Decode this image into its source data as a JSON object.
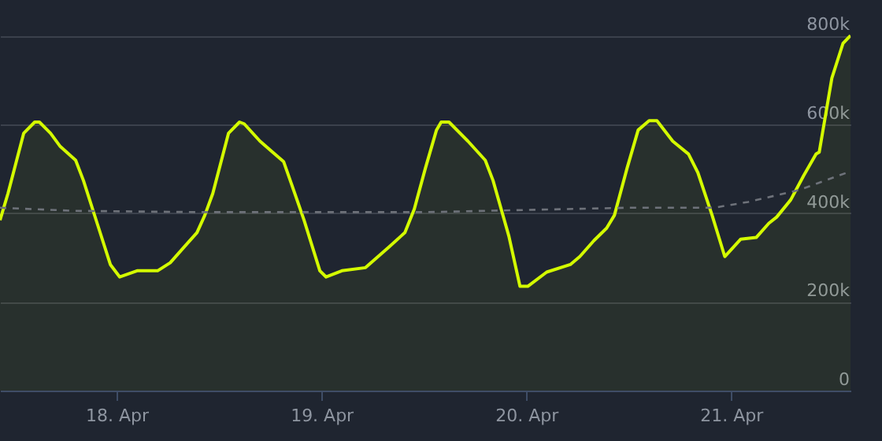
{
  "chart_data": {
    "type": "line",
    "series": [
      {
        "type": "area",
        "color": "#d4fb00",
        "x": [
          "--04-17T10:20",
          "--04-17T11:16",
          "--04-17T13:07",
          "--04-17T14:24",
          "--04-17T14:57",
          "--04-17T16:15",
          "--04-17T17:21",
          "--04-17T19:12",
          "--04-17T20:07",
          "--04-17T21:47",
          "--04-17T23:16",
          "--04-18T00:22",
          "--04-18T02:24",
          "--04-18T04:48",
          "--04-18T06:17",
          "--04-18T07:56",
          "--04-18T09:25",
          "--04-18T10:20",
          "--04-18T11:16",
          "--04-18T13:07",
          "--04-18T14:24",
          "--04-18T14:57",
          "--04-18T16:48",
          "--04-18T18:17",
          "--04-18T19:34",
          "--04-18T20:29",
          "--04-18T21:58",
          "--04-18T23:49",
          "--04-19T00:33",
          "--04-19T02:24",
          "--04-19T05:10",
          "--04-19T07:56",
          "--04-19T09:47",
          "--04-19T10:53",
          "--04-19T12:11",
          "--04-19T13:29",
          "--04-19T14:02",
          "--04-19T14:57",
          "--04-19T17:10",
          "--04-19T19:12",
          "--04-19T20:07",
          "--04-19T21:58",
          "--04-19T23:16",
          "--04-20T00:11",
          "--04-20T02:24",
          "--04-20T05:10",
          "--04-20T06:17",
          "--04-20T07:56",
          "--04-20T09:25",
          "--04-20T10:20",
          "--04-20T11:49",
          "--04-20T13:07",
          "--04-20T14:24",
          "--04-20T15:19",
          "--04-20T17:10",
          "--04-20T19:01",
          "--04-20T20:07",
          "--04-20T21:47",
          "--04-20T23:16",
          "--04-21T01:07",
          "--04-21T02:57",
          "--04-21T04:26",
          "--04-21T05:21",
          "--04-21T07:00",
          "--04-21T08:30",
          "--04-21T09:58",
          "--04-21T10:20",
          "--04-21T11:49",
          "--04-21T13:07",
          "--04-21T14:00"
        ],
        "values": [
          384000,
          444000,
          580000,
          605000,
          605000,
          580000,
          551000,
          519000,
          473000,
          373000,
          284000,
          256000,
          270000,
          270000,
          288000,
          324000,
          356000,
          395000,
          444000,
          580000,
          605000,
          601000,
          562000,
          537000,
          516000,
          466000,
          384000,
          270000,
          256000,
          270000,
          277000,
          324000,
          356000,
          409000,
          501000,
          587000,
          605000,
          605000,
          562000,
          519000,
          473000,
          348000,
          235000,
          235000,
          267000,
          284000,
          302000,
          338000,
          366000,
          395000,
          501000,
          587000,
          608000,
          608000,
          562000,
          533000,
          491000,
          395000,
          302000,
          341000,
          345000,
          377000,
          391000,
          430000,
          484000,
          533000,
          537000,
          704000,
          782000,
          800000
        ]
      },
      {
        "type": "line",
        "color": "#6e727a",
        "line_style": "dashed",
        "x": [
          "--04-17T10:20",
          "--04-17T19:00",
          "--04-18T10:00",
          "--04-19T12:00",
          "--04-20T12:00",
          "--04-20T22:00",
          "--04-21T02:00",
          "--04-21T08:00",
          "--04-21T14:00"
        ],
        "values": [
          412000,
          405000,
          402000,
          402000,
          412000,
          412000,
          425000,
          452000,
          494000
        ]
      }
    ],
    "xlim": [
      "--04-17T10:20",
      "--04-21T14:00"
    ],
    "xticks": [
      {
        "value": "--04-18",
        "label": "18. Apr"
      },
      {
        "value": "--04-19",
        "label": "19. Apr"
      },
      {
        "value": "--04-20",
        "label": "20. Apr"
      },
      {
        "value": "--04-21",
        "label": "21. Apr"
      }
    ],
    "ylim": [
      0,
      880000
    ],
    "yticks": [
      {
        "value": 0,
        "label": "0"
      },
      {
        "value": 200000,
        "label": "200k"
      },
      {
        "value": 400000,
        "label": "400k"
      },
      {
        "value": 600000,
        "label": "600k"
      },
      {
        "value": 800000,
        "label": "800k"
      }
    ],
    "grid": "y"
  }
}
